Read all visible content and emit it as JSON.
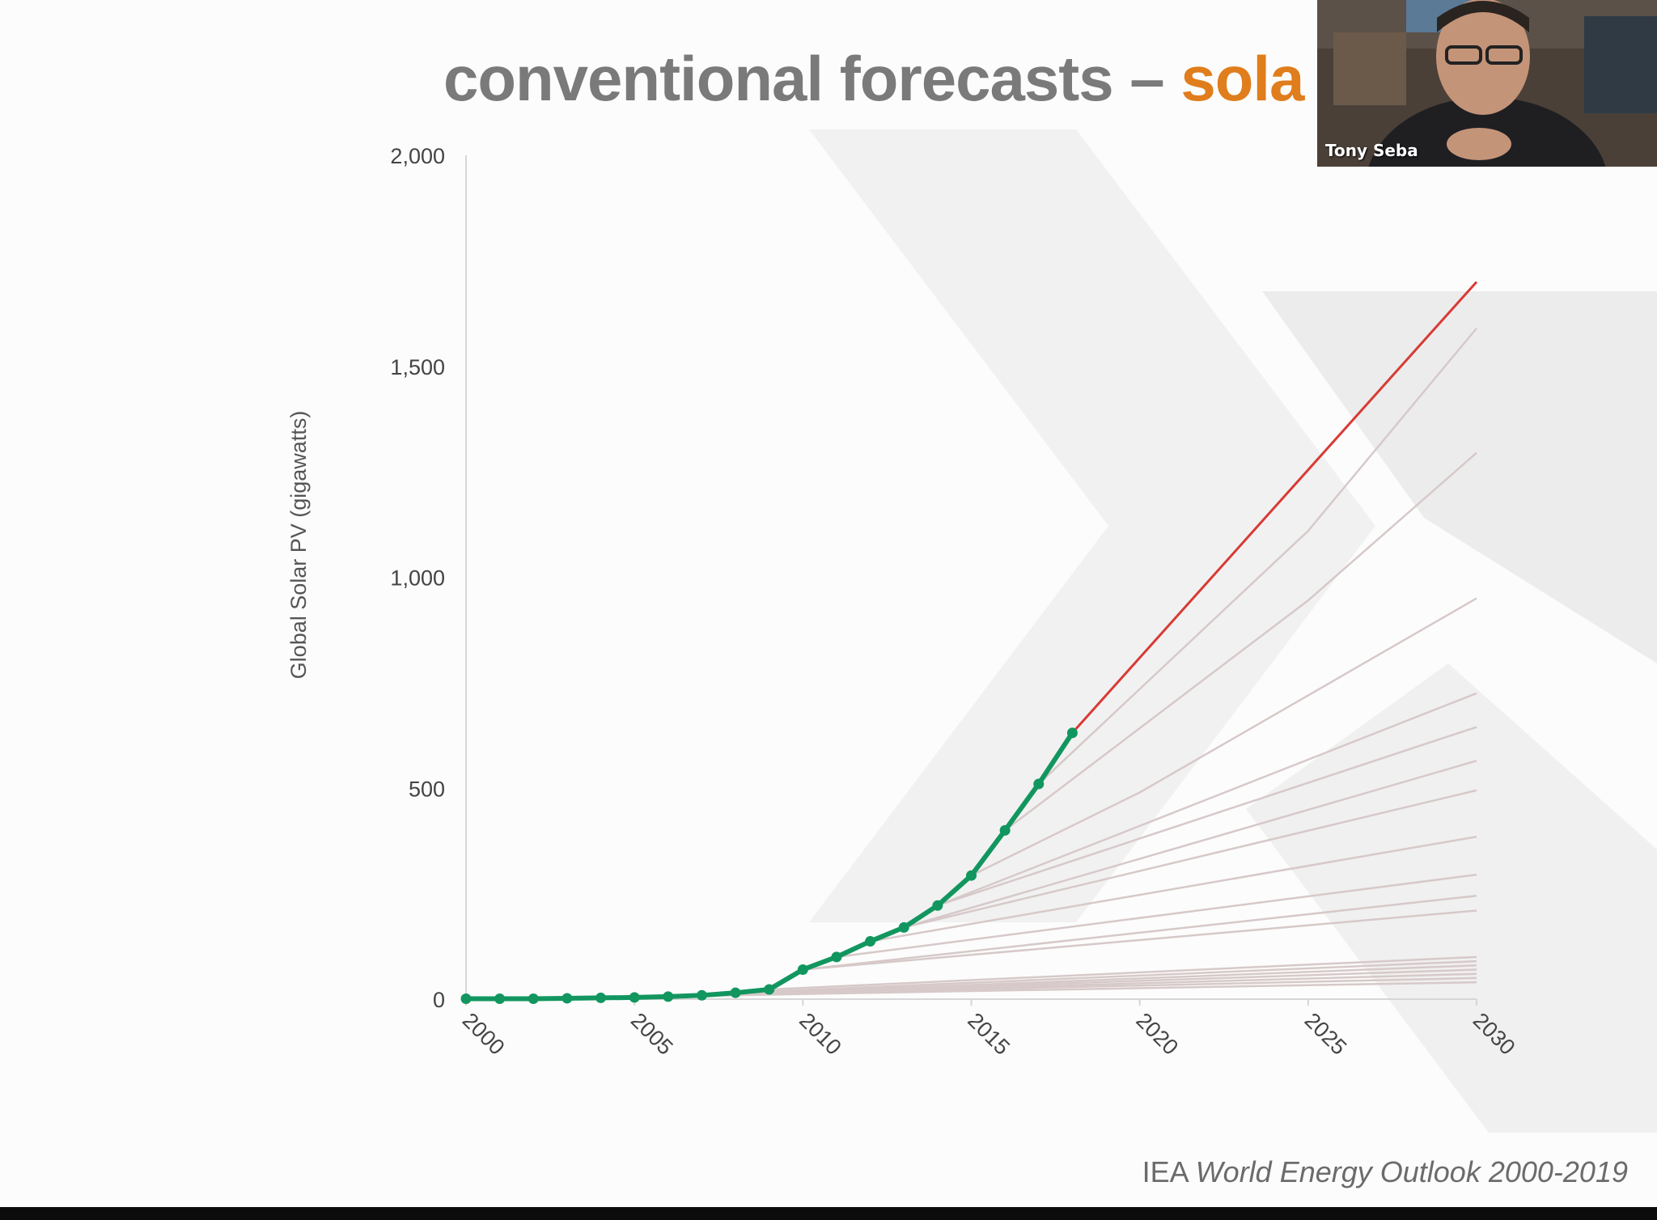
{
  "slide": {
    "title_main": "conventional forecasts – ",
    "title_accent": "sola",
    "source_prefix": "IEA ",
    "source_italic": "World Energy Outlook 2000-2019",
    "colors": {
      "title": "#7a7a7a",
      "accent": "#e07d1c"
    }
  },
  "video": {
    "presenter_name": "Tony Seba"
  },
  "chart_data": {
    "type": "line",
    "title": "",
    "xlabel": "",
    "ylabel": "Global Solar PV (gigawatts)",
    "xlim": [
      2000,
      2030
    ],
    "ylim": [
      0,
      2000
    ],
    "x_ticks": [
      "2000",
      "2005",
      "2010",
      "2015",
      "2020",
      "2025",
      "2030"
    ],
    "y_ticks": [
      "0",
      "500",
      "1,000",
      "1,500",
      "2,000"
    ],
    "grid": false,
    "colors": {
      "actual": "#12965f",
      "top_forecast": "#d83a35",
      "forecast": "#d7c9c9",
      "axis": "#d6d6d6"
    },
    "series": [
      {
        "role": "actual",
        "x": [
          2000,
          2001,
          2002,
          2003,
          2004,
          2005,
          2006,
          2007,
          2008,
          2009,
          2010,
          2011,
          2012,
          2013,
          2014,
          2015,
          2016,
          2017,
          2018
        ],
        "y": [
          1,
          1,
          1,
          2,
          3,
          4,
          6,
          9,
          15,
          23,
          70,
          100,
          137,
          170,
          222,
          293,
          400,
          510,
          631
        ]
      },
      {
        "role": "top_forecast",
        "x": [
          2018,
          2030
        ],
        "y": [
          631,
          1700
        ]
      },
      {
        "role": "forecast",
        "x": [
          2017,
          2025,
          2030
        ],
        "y": [
          510,
          1110,
          1590
        ]
      },
      {
        "role": "forecast",
        "x": [
          2016,
          2025,
          2030
        ],
        "y": [
          400,
          945,
          1295
        ]
      },
      {
        "role": "forecast",
        "x": [
          2015,
          2020,
          2030
        ],
        "y": [
          293,
          490,
          950
        ]
      },
      {
        "role": "forecast",
        "x": [
          2014,
          2030
        ],
        "y": [
          222,
          725
        ]
      },
      {
        "role": "forecast",
        "x": [
          2014,
          2030
        ],
        "y": [
          222,
          645
        ]
      },
      {
        "role": "forecast",
        "x": [
          2013,
          2030
        ],
        "y": [
          170,
          565
        ]
      },
      {
        "role": "forecast",
        "x": [
          2013,
          2030
        ],
        "y": [
          170,
          495
        ]
      },
      {
        "role": "forecast",
        "x": [
          2012,
          2030
        ],
        "y": [
          137,
          385
        ]
      },
      {
        "role": "forecast",
        "x": [
          2011,
          2030
        ],
        "y": [
          100,
          295
        ]
      },
      {
        "role": "forecast",
        "x": [
          2010,
          2030
        ],
        "y": [
          70,
          245
        ]
      },
      {
        "role": "forecast",
        "x": [
          2010,
          2030
        ],
        "y": [
          70,
          210
        ]
      },
      {
        "role": "forecast",
        "x": [
          2009,
          2030
        ],
        "y": [
          23,
          100
        ]
      },
      {
        "role": "forecast",
        "x": [
          2008,
          2030
        ],
        "y": [
          15,
          90
        ]
      },
      {
        "role": "forecast",
        "x": [
          2007,
          2030
        ],
        "y": [
          9,
          80
        ]
      },
      {
        "role": "forecast",
        "x": [
          2006,
          2030
        ],
        "y": [
          6,
          70
        ]
      },
      {
        "role": "forecast",
        "x": [
          2005,
          2030
        ],
        "y": [
          4,
          60
        ]
      },
      {
        "role": "forecast",
        "x": [
          2003,
          2030
        ],
        "y": [
          2,
          50
        ]
      },
      {
        "role": "forecast",
        "x": [
          2002,
          2030
        ],
        "y": [
          1,
          40
        ]
      }
    ]
  }
}
